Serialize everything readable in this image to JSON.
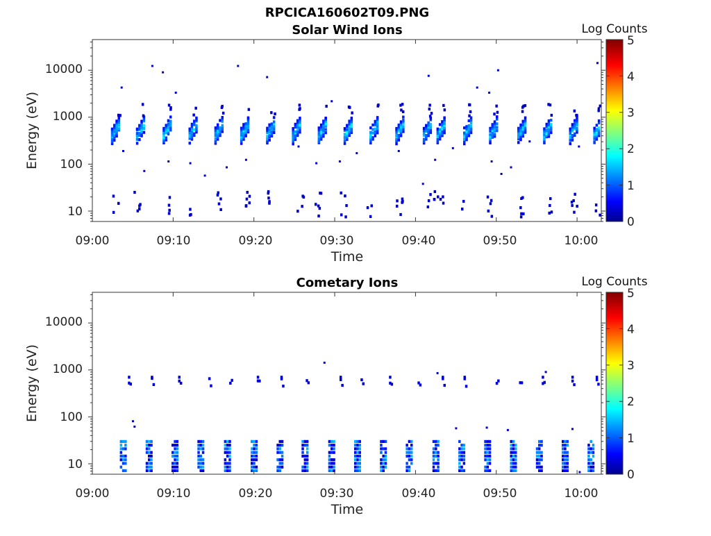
{
  "figure": {
    "title": "RPCICA160602T09.PNG"
  },
  "colormap": "jet",
  "chart_data": [
    {
      "type": "heatmap",
      "title": "Solar Wind Ions",
      "xlabel": "Time",
      "ylabel": "Energy (eV)",
      "x_tick_labels": [
        "09:00",
        "09:10",
        "09:20",
        "09:30",
        "09:40",
        "09:50",
        "10:00"
      ],
      "y_tick_labels": [
        "10",
        "100",
        "1000",
        "10000"
      ],
      "y_scale": "log",
      "xlim_minutes": [
        0,
        63
      ],
      "ylim": [
        6,
        45000
      ],
      "grid": false,
      "colorbar": {
        "label": "Log Counts",
        "range": [
          0,
          5
        ],
        "tick_labels": [
          "0",
          "1",
          "2",
          "3",
          "4",
          "5"
        ]
      },
      "bursts_minutes": [
        2.3,
        5.4,
        8.7,
        11.9,
        15.1,
        18.3,
        21.5,
        24.7,
        27.9,
        31.1,
        34.3,
        37.5,
        40.9,
        42.6,
        45.9,
        49.1,
        52.6,
        55.8,
        59.0,
        62.0
      ],
      "burst_peak_energy_ev": 650,
      "burst_peak_log_counts": 1.6,
      "low_energy_band_ev": [
        8,
        28
      ],
      "low_energy_band_log_counts": 0.3,
      "scatter_points": [
        {
          "t": 7.3,
          "e": 13000,
          "v": 0.3
        },
        {
          "t": 8.6,
          "e": 9500,
          "v": 0.3
        },
        {
          "t": 17.9,
          "e": 13000,
          "v": 0.3
        },
        {
          "t": 21.5,
          "e": 7500,
          "v": 0.3
        },
        {
          "t": 41.5,
          "e": 8000,
          "v": 0.3
        },
        {
          "t": 50.1,
          "e": 10500,
          "v": 0.3
        },
        {
          "t": 62.4,
          "e": 15000,
          "v": 0.3
        },
        {
          "t": 3.5,
          "e": 4500,
          "v": 0.3
        },
        {
          "t": 10.2,
          "e": 3500,
          "v": 0.3
        },
        {
          "t": 47.5,
          "e": 4500,
          "v": 0.3
        },
        {
          "t": 49.0,
          "e": 3500,
          "v": 0.3
        },
        {
          "t": 29.5,
          "e": 2300,
          "v": 0.3
        },
        {
          "t": 3.7,
          "e": 200,
          "v": 0.3
        },
        {
          "t": 9.3,
          "e": 120,
          "v": 0.3
        },
        {
          "t": 12.0,
          "e": 110,
          "v": 0.3
        },
        {
          "t": 13.8,
          "e": 60,
          "v": 0.3
        },
        {
          "t": 16.5,
          "e": 90,
          "v": 0.3
        },
        {
          "t": 18.9,
          "e": 130,
          "v": 0.3
        },
        {
          "t": 25.4,
          "e": 250,
          "v": 0.3
        },
        {
          "t": 27.6,
          "e": 110,
          "v": 0.3
        },
        {
          "t": 30.5,
          "e": 120,
          "v": 0.3
        },
        {
          "t": 32.6,
          "e": 180,
          "v": 0.3
        },
        {
          "t": 37.8,
          "e": 200,
          "v": 0.3
        },
        {
          "t": 42.3,
          "e": 130,
          "v": 0.3
        },
        {
          "t": 44.5,
          "e": 230,
          "v": 0.3
        },
        {
          "t": 49.3,
          "e": 120,
          "v": 0.3
        },
        {
          "t": 51.7,
          "e": 90,
          "v": 0.3
        },
        {
          "t": 54.0,
          "e": 320,
          "v": 0.3
        },
        {
          "t": 60.1,
          "e": 250,
          "v": 0.3
        },
        {
          "t": 6.3,
          "e": 75,
          "v": 0.3
        },
        {
          "t": 40.8,
          "e": 40,
          "v": 0.3
        },
        {
          "t": 50.5,
          "e": 65,
          "v": 0.3
        }
      ]
    },
    {
      "type": "heatmap",
      "title": "Cometary Ions",
      "xlabel": "Time",
      "ylabel": "Energy (eV)",
      "x_tick_labels": [
        "09:00",
        "09:10",
        "09:20",
        "09:30",
        "09:40",
        "09:50",
        "10:00"
      ],
      "y_tick_labels": [
        "10",
        "100",
        "1000",
        "10000"
      ],
      "y_scale": "log",
      "xlim_minutes": [
        0,
        63
      ],
      "ylim": [
        6,
        45000
      ],
      "grid": false,
      "colorbar": {
        "label": "Log Counts",
        "range": [
          0,
          5
        ],
        "tick_labels": [
          "0",
          "1",
          "2",
          "3",
          "4",
          "5"
        ]
      },
      "bursts_minutes": [
        3.4,
        6.6,
        9.8,
        13.0,
        16.3,
        19.6,
        22.8,
        25.9,
        29.2,
        32.4,
        35.6,
        38.8,
        42.1,
        45.3,
        48.5,
        51.7,
        54.9,
        58.1,
        61.3
      ],
      "burst_energy_range_ev": [
        7,
        35
      ],
      "burst_peak_log_counts": 1.3,
      "upper_band_energy_ev": 600,
      "upper_band_log_counts": 0.4,
      "scatter_points": [
        {
          "t": 28.6,
          "e": 1500,
          "v": 0.3
        },
        {
          "t": 4.9,
          "e": 85,
          "v": 0.3
        },
        {
          "t": 5.1,
          "e": 65,
          "v": 0.3
        },
        {
          "t": 44.9,
          "e": 60,
          "v": 0.3
        },
        {
          "t": 48.7,
          "e": 62,
          "v": 0.3
        },
        {
          "t": 51.3,
          "e": 55,
          "v": 0.3
        },
        {
          "t": 59.3,
          "e": 58,
          "v": 0.3
        },
        {
          "t": 42.6,
          "e": 900,
          "v": 0.3
        },
        {
          "t": 56.0,
          "e": 950,
          "v": 0.3
        },
        {
          "t": 60.2,
          "e": 7,
          "v": 0.3
        }
      ]
    }
  ]
}
